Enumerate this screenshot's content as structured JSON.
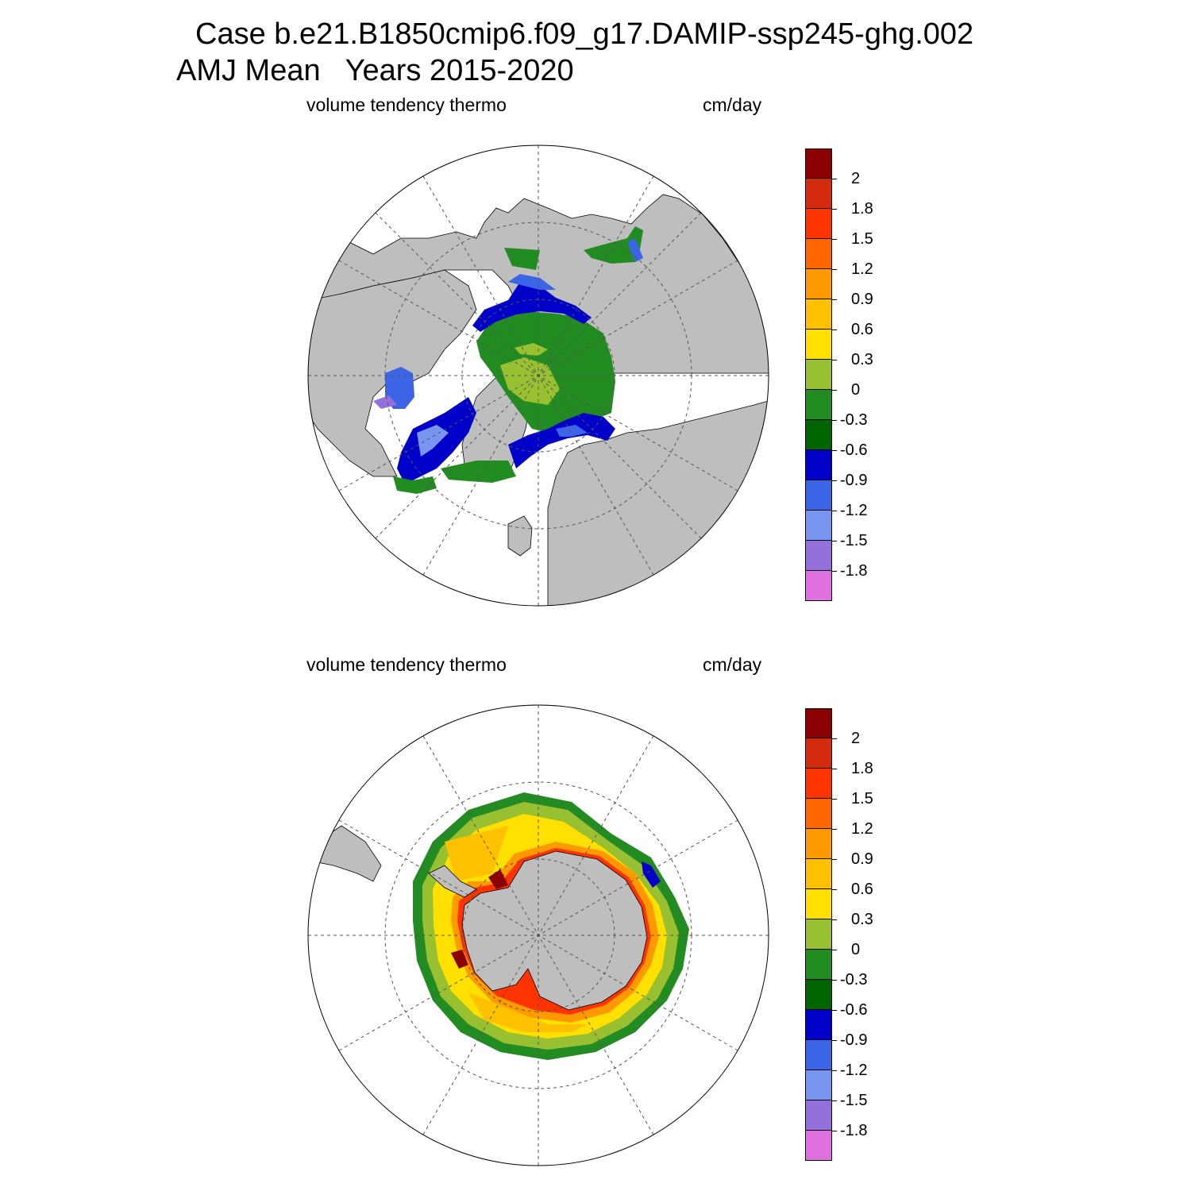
{
  "title": {
    "line1": "Case b.e21.B1850cmip6.f09_g17.DAMIP-ssp245-ghg.002",
    "line2": "AMJ Mean   Years 2015-2020"
  },
  "panels": [
    {
      "id": "north",
      "hemisphere": "Northern Hemisphere",
      "variable_label": "volume tendency thermo",
      "units_label": "cm/day"
    },
    {
      "id": "south",
      "hemisphere": "Southern Hemisphere",
      "variable_label": "volume tendency thermo",
      "units_label": "cm/day"
    }
  ],
  "colorbar": {
    "tick_labels": [
      "2",
      "1.8",
      "1.5",
      "1.2",
      "0.9",
      "0.6",
      "0.3",
      "0",
      "-0.3",
      "-0.6",
      "-0.9",
      "-1.2",
      "-1.5",
      "-1.8"
    ],
    "colors_top_to_bottom": [
      "#8b0000",
      "#d42a10",
      "#ff3300",
      "#ff6600",
      "#ff9900",
      "#ffc000",
      "#ffe000",
      "#99c030",
      "#228b22",
      "#006400",
      "#0000c8",
      "#3c64e6",
      "#7896f0",
      "#9370db",
      "#e070e0"
    ]
  },
  "colors": {
    "land": "#bebebe",
    "ocean": "#ffffff",
    "grid": "#555555"
  }
}
